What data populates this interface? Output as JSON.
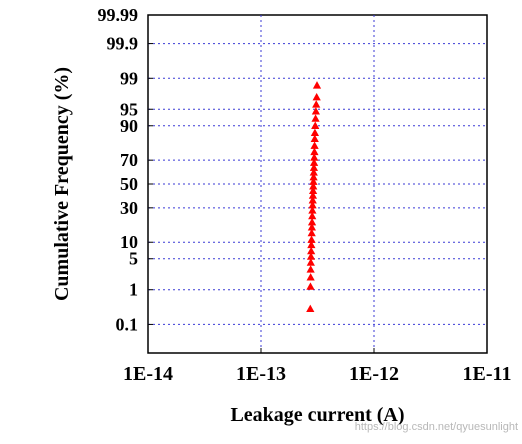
{
  "chart_data": {
    "type": "scatter",
    "title": "",
    "xlabel": "Leakage current (A)",
    "ylabel": "Cumulative Frequency (%)",
    "x_scale": "log",
    "y_scale": "probability",
    "xlim": [
      1e-14,
      1e-11
    ],
    "ylim": [
      0.01,
      99.99
    ],
    "x_ticks": [
      {
        "value": 1e-14,
        "label": "1E-14"
      },
      {
        "value": 1e-13,
        "label": "1E-13"
      },
      {
        "value": 1e-12,
        "label": "1E-12"
      },
      {
        "value": 1e-11,
        "label": "1E-11"
      }
    ],
    "y_ticks": [
      {
        "value": 0.1,
        "label": "0.1"
      },
      {
        "value": 1,
        "label": "1"
      },
      {
        "value": 5,
        "label": "5"
      },
      {
        "value": 10,
        "label": "10"
      },
      {
        "value": 30,
        "label": "30"
      },
      {
        "value": 50,
        "label": "50"
      },
      {
        "value": 70,
        "label": "70"
      },
      {
        "value": 90,
        "label": "90"
      },
      {
        "value": 95,
        "label": "95"
      },
      {
        "value": 99,
        "label": "99"
      },
      {
        "value": 99.9,
        "label": "99.9"
      },
      {
        "value": 99.99,
        "label": "99.99"
      }
    ],
    "grid": true,
    "marker": "triangle",
    "marker_color": "#ff0000",
    "series": [
      {
        "x_range": [
          2.72e-13,
          3.13e-13
        ],
        "cumulative_pct_range": [
          0.3,
          98.5
        ],
        "points": [
          {
            "x": 2.73e-13,
            "y": 0.3
          },
          {
            "x": 2.74e-13,
            "y": 1.2
          },
          {
            "x": 2.75e-13,
            "y": 2.0
          },
          {
            "x": 2.75e-13,
            "y": 3.0
          },
          {
            "x": 2.76e-13,
            "y": 4.2
          },
          {
            "x": 2.77e-13,
            "y": 5.5
          },
          {
            "x": 2.78e-13,
            "y": 7.0
          },
          {
            "x": 2.79e-13,
            "y": 9.0
          },
          {
            "x": 2.8e-13,
            "y": 11.0
          },
          {
            "x": 2.81e-13,
            "y": 14.0
          },
          {
            "x": 2.82e-13,
            "y": 17.0
          },
          {
            "x": 2.83e-13,
            "y": 20.0
          },
          {
            "x": 2.84e-13,
            "y": 24.0
          },
          {
            "x": 2.85e-13,
            "y": 28.0
          },
          {
            "x": 2.86e-13,
            "y": 32.0
          },
          {
            "x": 2.87e-13,
            "y": 36.0
          },
          {
            "x": 2.88e-13,
            "y": 40.0
          },
          {
            "x": 2.89e-13,
            "y": 44.0
          },
          {
            "x": 2.9e-13,
            "y": 48.0
          },
          {
            "x": 2.91e-13,
            "y": 52.0
          },
          {
            "x": 2.92e-13,
            "y": 56.0
          },
          {
            "x": 2.93e-13,
            "y": 60.0
          },
          {
            "x": 2.94e-13,
            "y": 64.0
          },
          {
            "x": 2.95e-13,
            "y": 68.0
          },
          {
            "x": 2.96e-13,
            "y": 72.0
          },
          {
            "x": 2.97e-13,
            "y": 76.0
          },
          {
            "x": 2.98e-13,
            "y": 80.0
          },
          {
            "x": 2.99e-13,
            "y": 84.0
          },
          {
            "x": 3e-13,
            "y": 87.0
          },
          {
            "x": 3.02e-13,
            "y": 90.0
          },
          {
            "x": 3.04e-13,
            "y": 92.5
          },
          {
            "x": 3.06e-13,
            "y": 94.5
          },
          {
            "x": 3.08e-13,
            "y": 96.0
          },
          {
            "x": 3.11e-13,
            "y": 97.2
          },
          {
            "x": 3.13e-13,
            "y": 98.5
          }
        ]
      }
    ]
  },
  "watermark": "https://blog.csdn.net/qyuesunlight"
}
